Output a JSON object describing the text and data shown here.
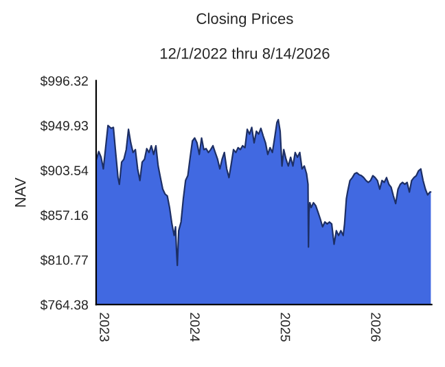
{
  "chart_data": {
    "type": "area",
    "title": "Closing Prices",
    "subtitle": "12/1/2022 thru 8/14/2026",
    "ylabel": "NAV",
    "x": [
      2022.924,
      2022.949,
      2022.975,
      2023.0,
      2023.025,
      2023.051,
      2023.086,
      2023.111,
      2023.136,
      2023.162,
      2023.177,
      2023.202,
      2023.227,
      2023.253,
      2023.278,
      2023.303,
      2023.328,
      2023.354,
      2023.379,
      2023.404,
      2023.429,
      2023.455,
      2023.48,
      2023.505,
      2023.53,
      2023.556,
      2023.581,
      2023.606,
      2023.631,
      2023.657,
      2023.682,
      2023.707,
      2023.732,
      2023.758,
      2023.783,
      2023.798,
      2023.808,
      2023.818,
      2023.833,
      2023.859,
      2023.884,
      2023.909,
      2023.934,
      2023.96,
      2023.985,
      2024.01,
      2024.035,
      2024.061,
      2024.086,
      2024.111,
      2024.136,
      2024.162,
      2024.187,
      2024.212,
      2024.237,
      2024.263,
      2024.288,
      2024.313,
      2024.338,
      2024.364,
      2024.389,
      2024.414,
      2024.439,
      2024.465,
      2024.49,
      2024.515,
      2024.54,
      2024.566,
      2024.591,
      2024.616,
      2024.641,
      2024.667,
      2024.692,
      2024.717,
      2024.742,
      2024.768,
      2024.793,
      2024.818,
      2024.843,
      2024.869,
      2024.894,
      2024.919,
      2024.934,
      2024.955,
      2024.975,
      2024.995,
      2025.02,
      2025.045,
      2025.071,
      2025.096,
      2025.121,
      2025.146,
      2025.172,
      2025.197,
      2025.222,
      2025.247,
      2025.263,
      2025.268,
      2025.273,
      2025.283,
      2025.298,
      2025.323,
      2025.348,
      2025.374,
      2025.399,
      2025.424,
      2025.449,
      2025.475,
      2025.5,
      2025.525,
      2025.551,
      2025.576,
      2025.601,
      2025.626,
      2025.652,
      2025.667,
      2025.687,
      2025.702,
      2025.727,
      2025.753,
      2025.778,
      2025.803,
      2025.828,
      2025.854,
      2025.879,
      2025.904,
      2025.929,
      2025.955,
      2025.98,
      2026.005,
      2026.03,
      2026.056,
      2026.081,
      2026.106,
      2026.131,
      2026.157,
      2026.182,
      2026.207,
      2026.232,
      2026.258,
      2026.283,
      2026.308,
      2026.333,
      2026.359,
      2026.384,
      2026.409,
      2026.434,
      2026.46,
      2026.485,
      2026.51,
      2026.535,
      2026.561,
      2026.586,
      2026.611,
      2026.621
    ],
    "series": [
      {
        "color": "#4169e1",
        "values": [
          915,
          923,
          917,
          905,
          927,
          950,
          947,
          948,
          922,
          896,
          889,
          912,
          915,
          925,
          946,
          932,
          922,
          925,
          905,
          893,
          912,
          915,
          926,
          922,
          929,
          920,
          929,
          908,
          896,
          884,
          879,
          877,
          865,
          848,
          836,
          845,
          822,
          805,
          841,
          850,
          874,
          893,
          898,
          917,
          934,
          937,
          932,
          920,
          937,
          925,
          926,
          922,
          925,
          929,
          922,
          915,
          905,
          915,
          922,
          905,
          896,
          910,
          925,
          922,
          927,
          925,
          929,
          927,
          946,
          941,
          948,
          932,
          944,
          941,
          947,
          939,
          932,
          920,
          927,
          922,
          937,
          953,
          956,
          944,
          908,
          925,
          915,
          908,
          917,
          908,
          922,
          917,
          922,
          905,
          908,
          900,
          889,
          824,
          860,
          870,
          865,
          870,
          867,
          860,
          853,
          845,
          850,
          848,
          850,
          848,
          827,
          841,
          836,
          841,
          836,
          848,
          874,
          882,
          893,
          896,
          900,
          901,
          899,
          898,
          896,
          893,
          891,
          893,
          898,
          896,
          893,
          884,
          893,
          891,
          896,
          889,
          886,
          877,
          869,
          884,
          889,
          891,
          889,
          891,
          881,
          893,
          896,
          898,
          903,
          905,
          893,
          884,
          878,
          881,
          881
        ]
      }
    ],
    "xlim": [
      2022.92,
      2026.63
    ],
    "xticks": [
      2023,
      2024,
      2025,
      2026
    ],
    "ylim": [
      764.38,
      996.32
    ],
    "yticks": [
      {
        "value": 764.38,
        "label": "$764.38"
      },
      {
        "value": 810.77,
        "label": "$810.77"
      },
      {
        "value": 857.16,
        "label": "$857.16"
      },
      {
        "value": 903.54,
        "label": "$903.54"
      },
      {
        "value": 949.93,
        "label": "$949.93"
      },
      {
        "value": 996.32,
        "label": "$996.32"
      }
    ],
    "grid": false,
    "legend": false
  }
}
